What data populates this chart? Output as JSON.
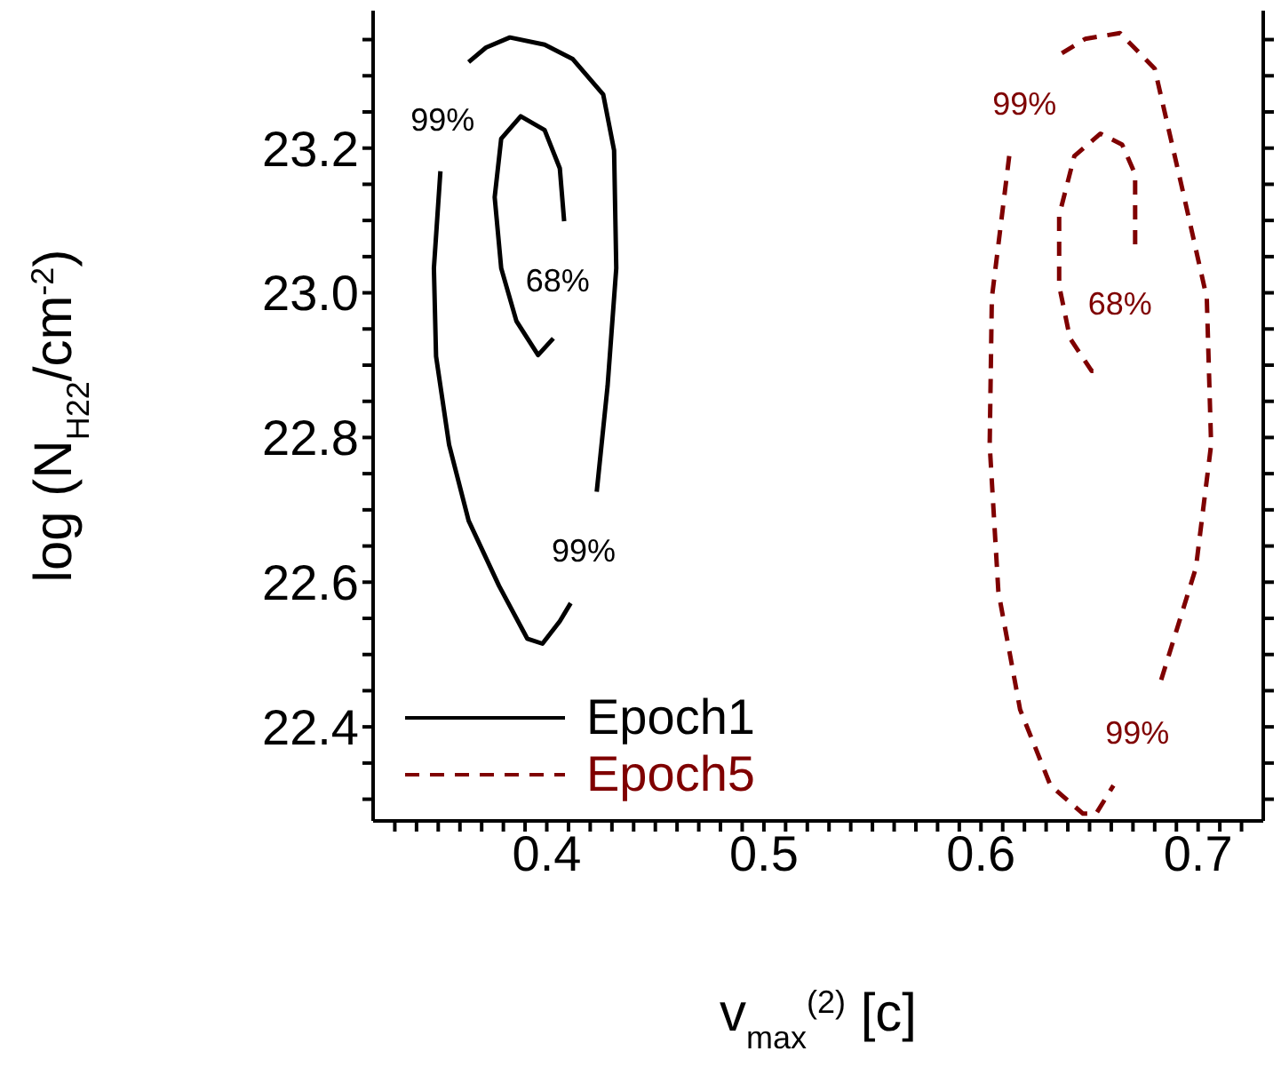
{
  "chart_data": {
    "type": "line",
    "xlabel": "v$_{max}$$^{(2)}$ [c]",
    "ylabel": "log (N$_{H22}$/cm$^{-2}$)",
    "xlim": [
      0.32,
      0.73
    ],
    "xticks": [
      {
        "value": 0.33,
        "label": null
      },
      {
        "value": 0.34,
        "label": null
      },
      {
        "value": 0.35,
        "label": null
      },
      {
        "value": 0.36,
        "label": null
      },
      {
        "value": 0.37,
        "label": null
      },
      {
        "value": 0.38,
        "label": null
      },
      {
        "value": 0.39,
        "label": null
      },
      0.4,
      {
        "value": 0.41,
        "label": null
      },
      {
        "value": 0.42,
        "label": null
      },
      {
        "value": 0.43,
        "label": null
      },
      {
        "value": 0.44,
        "label": null
      },
      {
        "value": 0.45,
        "label": null
      },
      {
        "value": 0.46,
        "label": null
      },
      {
        "value": 0.47,
        "label": null
      },
      {
        "value": 0.48,
        "label": null
      },
      {
        "value": 0.49,
        "label": null
      },
      0.5,
      {
        "value": 0.51,
        "label": null
      },
      {
        "value": 0.52,
        "label": null
      },
      {
        "value": 0.53,
        "label": null
      },
      {
        "value": 0.54,
        "label": null
      },
      {
        "value": 0.55,
        "label": null
      },
      {
        "value": 0.56,
        "label": null
      },
      {
        "value": 0.57,
        "label": null
      },
      {
        "value": 0.58,
        "label": null
      },
      {
        "value": 0.59,
        "label": null
      },
      0.6,
      {
        "value": 0.61,
        "label": null
      },
      {
        "value": 0.62,
        "label": null
      },
      {
        "value": 0.63,
        "label": null
      },
      {
        "value": 0.64,
        "label": null
      },
      {
        "value": 0.65,
        "label": null
      },
      {
        "value": 0.66,
        "label": null
      },
      {
        "value": 0.67,
        "label": null
      },
      {
        "value": 0.68,
        "label": null
      },
      {
        "value": 0.69,
        "label": null
      },
      0.7,
      {
        "value": 0.71,
        "label": null
      },
      {
        "value": 0.72,
        "label": null
      }
    ],
    "ylim": [
      22.27,
      23.39
    ],
    "yticks": [
      {
        "value": 22.3,
        "label": null
      },
      {
        "value": 22.35,
        "label": null
      },
      {
        "value": 22.4,
        "label": "22.4"
      },
      {
        "value": 22.45,
        "label": null
      },
      {
        "value": 22.5,
        "label": null
      },
      {
        "value": 22.55,
        "label": null
      },
      {
        "value": 22.6,
        "label": "22.6"
      },
      {
        "value": 22.65,
        "label": null
      },
      {
        "value": 22.7,
        "label": null
      },
      {
        "value": 22.75,
        "label": null
      },
      {
        "value": 22.8,
        "label": "22.8"
      },
      {
        "value": 22.85,
        "label": null
      },
      {
        "value": 22.9,
        "label": null
      },
      {
        "value": 22.95,
        "label": null
      },
      {
        "value": 23.0,
        "label": "23.0"
      },
      {
        "value": 23.05,
        "label": null
      },
      {
        "value": 23.1,
        "label": null
      },
      {
        "value": 23.15,
        "label": null
      },
      {
        "value": 23.2,
        "label": "23.2"
      },
      {
        "value": 23.25,
        "label": null
      },
      {
        "value": 23.3,
        "label": null
      },
      {
        "value": 23.35,
        "label": null
      }
    ],
    "grid": false,
    "legend": "bottom left",
    "marker": "none",
    "series": [
      {
        "name": "Epoch1",
        "color": "#000000",
        "line_style": "solid",
        "x": [
          0.351,
          0.348,
          0.349,
          0.355,
          0.364,
          0.378,
          0.391,
          0.398,
          0.406,
          0.411
        ],
        "values": [
          23.168,
          23.034,
          22.912,
          22.79,
          22.685,
          22.595,
          22.522,
          22.515,
          22.546,
          22.571
        ]
      },
      {
        "color": "#000000",
        "line_style": "solid",
        "x": [
          0.423,
          0.428,
          0.432,
          0.431,
          0.426,
          0.412,
          0.399,
          0.383,
          0.372,
          0.364
        ],
        "values": [
          22.725,
          22.871,
          23.034,
          23.197,
          23.274,
          23.323,
          23.343,
          23.353,
          23.339,
          23.319
        ]
      },
      {
        "color": "#000000",
        "line_style": "solid",
        "x": [
          0.408,
          0.406,
          0.399,
          0.388,
          0.379,
          0.376,
          0.379,
          0.386,
          0.396,
          0.403
        ],
        "values": [
          23.099,
          23.172,
          23.225,
          23.244,
          23.213,
          23.132,
          23.034,
          22.961,
          22.914,
          22.937
        ]
      },
      {
        "name": "Epoch5",
        "color": "#7f0000",
        "line_style": "dashed",
        "x": [
          0.613,
          0.605,
          0.604,
          0.608,
          0.618,
          0.632,
          0.647,
          0.653,
          0.661
        ],
        "values": [
          23.189,
          22.993,
          22.79,
          22.587,
          22.424,
          22.319,
          22.28,
          22.28,
          22.319
        ]
      },
      {
        "color": "#7f0000",
        "line_style": "dashed",
        "x": [
          0.683,
          0.699,
          0.706,
          0.704,
          0.693,
          0.68,
          0.664,
          0.648,
          0.635
        ],
        "values": [
          22.465,
          22.62,
          22.79,
          22.993,
          23.14,
          23.31,
          23.359,
          23.351,
          23.327
        ]
      },
      {
        "color": "#7f0000",
        "line_style": "dashed",
        "x": [
          0.671,
          0.671,
          0.665,
          0.655,
          0.643,
          0.636,
          0.636,
          0.641,
          0.651,
          0.655
        ],
        "values": [
          23.067,
          23.164,
          23.205,
          23.22,
          23.189,
          23.107,
          23.01,
          22.937,
          22.892,
          22.892
        ]
      }
    ],
    "annotations": [
      {
        "text": "99%",
        "x": 0.352,
        "y": 23.24
      },
      {
        "text": "68%",
        "x": 0.405,
        "y": 23.018
      },
      {
        "text": "99%",
        "x": 0.417,
        "y": 22.644
      },
      {
        "text": "99%",
        "x": 0.62,
        "y": 23.262
      },
      {
        "text": "68%",
        "x": 0.664,
        "y": 22.985
      },
      {
        "text": "99%",
        "x": 0.672,
        "y": 22.392
      }
    ]
  }
}
